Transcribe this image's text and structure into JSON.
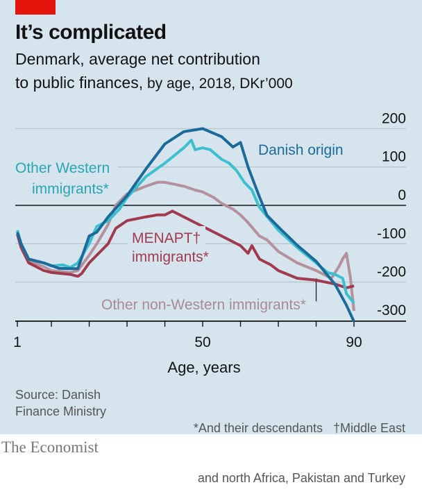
{
  "chart_data": {
    "type": "line",
    "title": "It’s complicated",
    "subtitle_main": "Denmark, average net contribution to public finances,",
    "subtitle_line1": "Denmark, average net contribution",
    "subtitle_line2_main": "to public finances,",
    "subtitle_line2_rest": " by age, 2018, DKr’000",
    "xlabel": "Age, years",
    "ylabel": "",
    "xlim": [
      1,
      90
    ],
    "ylim": [
      -300,
      200
    ],
    "x_ticks": [
      1,
      10,
      20,
      30,
      40,
      50,
      60,
      70,
      80,
      90
    ],
    "x_tick_labels": [
      "1",
      "50",
      "90"
    ],
    "y_ticks": [
      200,
      100,
      0,
      -100,
      -200,
      -300
    ],
    "y_tick_labels": [
      "200",
      "100",
      "0",
      "-100",
      "-200",
      "-300"
    ],
    "grid": true,
    "series": [
      {
        "name": "Danish origin",
        "color": "#1b6a9a",
        "x": [
          1,
          2,
          4,
          8,
          12,
          15,
          17,
          20,
          22,
          25,
          30,
          35,
          40,
          45,
          50,
          55,
          58,
          60,
          62,
          65,
          67,
          70,
          75,
          80,
          85,
          88,
          90
        ],
        "values": [
          -70,
          -100,
          -140,
          -150,
          -164,
          -165,
          -165,
          -80,
          -70,
          -30,
          25,
          95,
          160,
          192,
          200,
          179,
          152,
          164,
          100,
          22,
          -26,
          -56,
          -104,
          -146,
          -206,
          -260,
          -303
        ]
      },
      {
        "name": "Other Western immigrants*",
        "color": "#3dbfcf",
        "x": [
          1,
          2,
          4,
          8,
          10,
          13,
          15,
          17,
          20,
          22,
          25,
          28,
          30,
          35,
          40,
          45,
          47,
          48,
          50,
          52,
          55,
          57,
          59,
          61,
          63,
          65,
          70,
          75,
          80,
          83,
          85,
          87,
          88,
          90
        ],
        "values": [
          -65,
          -100,
          -140,
          -150,
          -158,
          -155,
          -162,
          -150,
          -100,
          -55,
          -40,
          -10,
          20,
          75,
          110,
          150,
          170,
          145,
          150,
          145,
          120,
          110,
          90,
          60,
          40,
          -5,
          -65,
          -110,
          -150,
          -175,
          -180,
          -190,
          -230,
          -255
        ]
      },
      {
        "name": "Other non-Western immigrants*",
        "color": "#b4919c",
        "x": [
          1,
          2,
          4,
          8,
          10,
          15,
          17,
          20,
          22,
          25,
          27,
          30,
          35,
          38,
          40,
          45,
          48,
          50,
          53,
          55,
          58,
          60,
          62,
          65,
          67,
          70,
          75,
          80,
          82,
          84,
          85,
          86,
          87,
          88,
          89,
          90
        ],
        "values": [
          -75,
          -105,
          -145,
          -160,
          -170,
          -175,
          -170,
          -130,
          -100,
          -50,
          0,
          30,
          50,
          60,
          60,
          50,
          40,
          35,
          20,
          5,
          -10,
          -25,
          -45,
          -80,
          -90,
          -120,
          -150,
          -170,
          -180,
          -190,
          -175,
          -160,
          -140,
          -125,
          -185,
          -275
        ]
      },
      {
        "name": "MENAPT† immigrants*",
        "color": "#a23a4f",
        "x": [
          1,
          2,
          4,
          8,
          10,
          15,
          17,
          18,
          20,
          22,
          25,
          27,
          30,
          35,
          38,
          40,
          42,
          45,
          48,
          50,
          53,
          55,
          58,
          60,
          62,
          63,
          65,
          68,
          70,
          75,
          80,
          85,
          88,
          90
        ],
        "values": [
          -75,
          -110,
          -150,
          -170,
          -175,
          -180,
          -185,
          -178,
          -150,
          -130,
          -100,
          -60,
          -40,
          -30,
          -25,
          -25,
          -15,
          -30,
          -45,
          -55,
          -70,
          -80,
          -95,
          -105,
          -125,
          -105,
          -140,
          -155,
          -170,
          -190,
          -195,
          -205,
          -215,
          -210
        ]
      }
    ],
    "labels": {
      "danish": "Danish origin",
      "western_1": "Other Western",
      "western_2": "immigrants*",
      "menapt_1": "MENAPT†",
      "menapt_2": "immigrants*",
      "nonwestern": "Other non-Western immigrants*"
    }
  },
  "footer": {
    "source_1": "Source: Danish",
    "source_2": "Finance Ministry",
    "note_1": "*And their descendants   †Middle East",
    "note_2": "and north Africa, Pakistan and Turkey",
    "brand": "The Economist"
  },
  "colors": {
    "background": "#d6e5ed",
    "tag": "#e3120b"
  }
}
